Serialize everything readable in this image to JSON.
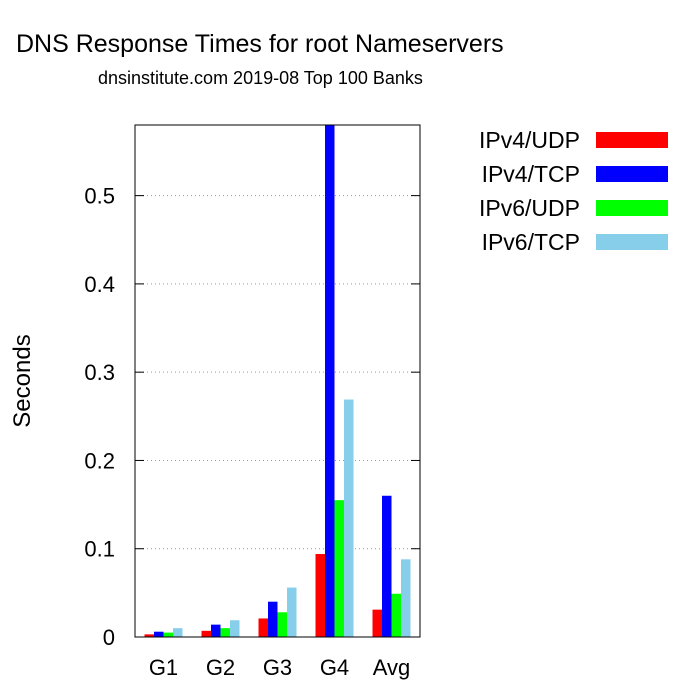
{
  "title": "DNS Response Times for root Nameservers",
  "subtitle": "dnsinstitute.com 2019-08 Top 100 Banks",
  "chart_data": {
    "type": "bar",
    "title": "DNS Response Times for root Nameservers",
    "subtitle": "dnsinstitute.com 2019-08 Top 100 Banks",
    "xlabel": "",
    "ylabel": "Seconds",
    "categories": [
      "G1",
      "G2",
      "G3",
      "G4",
      "Avg"
    ],
    "series": [
      {
        "name": "IPv4/UDP",
        "color": "#ff0000",
        "values": [
          0.003,
          0.007,
          0.021,
          0.094,
          0.031
        ]
      },
      {
        "name": "IPv4/TCP",
        "color": "#0000ff",
        "values": [
          0.006,
          0.014,
          0.04,
          0.58,
          0.16
        ]
      },
      {
        "name": "IPv6/UDP",
        "color": "#00ff00",
        "values": [
          0.005,
          0.01,
          0.028,
          0.155,
          0.049
        ]
      },
      {
        "name": "IPv6/TCP",
        "color": "#87ceeb",
        "values": [
          0.01,
          0.019,
          0.056,
          0.269,
          0.088
        ]
      }
    ],
    "ylim": [
      0,
      0.58
    ],
    "yticks": [
      0,
      0.1,
      0.2,
      0.3,
      0.4,
      0.5
    ],
    "ytick_labels": [
      "0",
      "0.1",
      "0.2",
      "0.3",
      "0.4",
      "0.5"
    ],
    "grid": true,
    "legend_position": "right"
  }
}
